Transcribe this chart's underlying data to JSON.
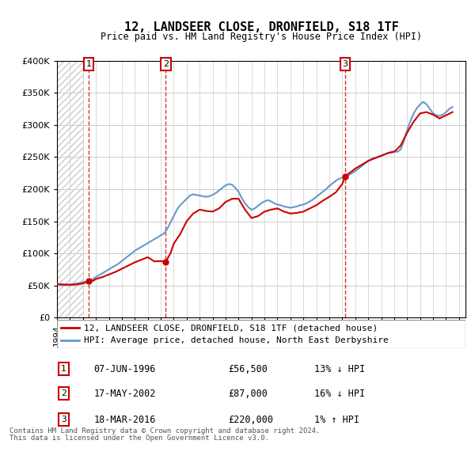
{
  "title": "12, LANDSEER CLOSE, DRONFIELD, S18 1TF",
  "subtitle": "Price paid vs. HM Land Registry's House Price Index (HPI)",
  "ylim": [
    0,
    400000
  ],
  "yticks": [
    0,
    50000,
    100000,
    150000,
    200000,
    250000,
    300000,
    350000,
    400000
  ],
  "ytick_labels": [
    "£0",
    "£50K",
    "£100K",
    "£150K",
    "£200K",
    "£250K",
    "£300K",
    "£350K",
    "£400K"
  ],
  "xlim_start": 1994.0,
  "xlim_end": 2025.5,
  "transactions": [
    {
      "label": "1",
      "date": 1996.44,
      "price": 56500,
      "hpi_price": 64945
    },
    {
      "label": "2",
      "date": 2002.38,
      "price": 87000,
      "hpi_price": 100920
    },
    {
      "label": "3",
      "date": 2016.21,
      "price": 220000,
      "hpi_price": 217800
    }
  ],
  "transaction_display": [
    {
      "num": "1",
      "date_str": "07-JUN-1996",
      "price_str": "£56,500",
      "rel_str": "13% ↓ HPI"
    },
    {
      "num": "2",
      "date_str": "17-MAY-2002",
      "price_str": "£87,000",
      "rel_str": "16% ↓ HPI"
    },
    {
      "num": "3",
      "date_str": "18-MAR-2016",
      "price_str": "£220,000",
      "rel_str": "1% ↑ HPI"
    }
  ],
  "legend_line1": "12, LANDSEER CLOSE, DRONFIELD, S18 1TF (detached house)",
  "legend_line2": "HPI: Average price, detached house, North East Derbyshire",
  "footer_line1": "Contains HM Land Registry data © Crown copyright and database right 2024.",
  "footer_line2": "This data is licensed under the Open Government Licence v3.0.",
  "red_color": "#cc0000",
  "blue_color": "#6699cc",
  "hpi_data_x": [
    1994.0,
    1994.25,
    1994.5,
    1994.75,
    1995.0,
    1995.25,
    1995.5,
    1995.75,
    1996.0,
    1996.25,
    1996.5,
    1996.75,
    1997.0,
    1997.25,
    1997.5,
    1997.75,
    1998.0,
    1998.25,
    1998.5,
    1998.75,
    1999.0,
    1999.25,
    1999.5,
    1999.75,
    2000.0,
    2000.25,
    2000.5,
    2000.75,
    2001.0,
    2001.25,
    2001.5,
    2001.75,
    2002.0,
    2002.25,
    2002.5,
    2002.75,
    2003.0,
    2003.25,
    2003.5,
    2003.75,
    2004.0,
    2004.25,
    2004.5,
    2004.75,
    2005.0,
    2005.25,
    2005.5,
    2005.75,
    2006.0,
    2006.25,
    2006.5,
    2006.75,
    2007.0,
    2007.25,
    2007.5,
    2007.75,
    2008.0,
    2008.25,
    2008.5,
    2008.75,
    2009.0,
    2009.25,
    2009.5,
    2009.75,
    2010.0,
    2010.25,
    2010.5,
    2010.75,
    2011.0,
    2011.25,
    2011.5,
    2011.75,
    2012.0,
    2012.25,
    2012.5,
    2012.75,
    2013.0,
    2013.25,
    2013.5,
    2013.75,
    2014.0,
    2014.25,
    2014.5,
    2014.75,
    2015.0,
    2015.25,
    2015.5,
    2015.75,
    2016.0,
    2016.25,
    2016.5,
    2016.75,
    2017.0,
    2017.25,
    2017.5,
    2017.75,
    2018.0,
    2018.25,
    2018.5,
    2018.75,
    2019.0,
    2019.25,
    2019.5,
    2019.75,
    2020.0,
    2020.25,
    2020.5,
    2020.75,
    2021.0,
    2021.25,
    2021.5,
    2021.75,
    2022.0,
    2022.25,
    2022.5,
    2022.75,
    2023.0,
    2023.25,
    2023.5,
    2023.75,
    2024.0,
    2024.25,
    2024.5
  ],
  "hpi_data_y": [
    52000,
    51000,
    50500,
    51000,
    51500,
    52000,
    53000,
    54000,
    55000,
    56000,
    58000,
    60000,
    63000,
    66000,
    69000,
    72000,
    75000,
    78000,
    81000,
    84000,
    88000,
    92000,
    96000,
    100000,
    104000,
    107000,
    110000,
    113000,
    116000,
    119000,
    122000,
    125000,
    128000,
    131000,
    138000,
    148000,
    158000,
    168000,
    175000,
    180000,
    185000,
    190000,
    192000,
    191000,
    190000,
    189000,
    188000,
    189000,
    191000,
    194000,
    198000,
    202000,
    206000,
    208000,
    207000,
    202000,
    196000,
    186000,
    178000,
    172000,
    168000,
    170000,
    174000,
    178000,
    181000,
    183000,
    181000,
    178000,
    176000,
    175000,
    173000,
    172000,
    171000,
    172000,
    173000,
    175000,
    176000,
    178000,
    181000,
    184000,
    188000,
    192000,
    196000,
    200000,
    205000,
    209000,
    213000,
    216000,
    218000,
    220000,
    222000,
    225000,
    228000,
    232000,
    236000,
    240000,
    244000,
    247000,
    249000,
    250000,
    252000,
    254000,
    256000,
    258000,
    259000,
    258000,
    262000,
    275000,
    292000,
    306000,
    318000,
    326000,
    332000,
    336000,
    332000,
    325000,
    318000,
    315000,
    314000,
    316000,
    320000,
    325000,
    328000
  ],
  "price_data_x": [
    1994.0,
    1994.5,
    1995.0,
    1995.5,
    1996.0,
    1996.44,
    1996.75,
    1997.0,
    1997.5,
    1998.0,
    1998.5,
    1999.0,
    1999.5,
    2000.0,
    2000.5,
    2001.0,
    2001.5,
    2002.0,
    2002.38,
    2002.75,
    2003.0,
    2003.5,
    2004.0,
    2004.5,
    2005.0,
    2005.5,
    2006.0,
    2006.5,
    2007.0,
    2007.5,
    2008.0,
    2008.5,
    2009.0,
    2009.5,
    2010.0,
    2010.5,
    2011.0,
    2011.5,
    2012.0,
    2012.5,
    2013.0,
    2013.5,
    2014.0,
    2014.5,
    2015.0,
    2015.5,
    2016.0,
    2016.21,
    2016.75,
    2017.0,
    2017.5,
    2018.0,
    2018.5,
    2019.0,
    2019.5,
    2020.0,
    2020.5,
    2021.0,
    2021.5,
    2022.0,
    2022.5,
    2023.0,
    2023.5,
    2024.0,
    2024.5
  ],
  "price_data_y": [
    52000,
    51500,
    51000,
    51500,
    53000,
    56500,
    57000,
    60000,
    63000,
    67000,
    71000,
    76000,
    81000,
    86000,
    90000,
    94000,
    87500,
    88000,
    87000,
    100000,
    115000,
    130000,
    150000,
    162000,
    168000,
    166000,
    165000,
    170000,
    180000,
    185000,
    185000,
    168000,
    155000,
    158000,
    165000,
    168000,
    170000,
    165000,
    162000,
    163000,
    165000,
    170000,
    175000,
    182000,
    188000,
    195000,
    208000,
    220000,
    228000,
    232000,
    238000,
    244000,
    248000,
    252000,
    256000,
    258000,
    268000,
    288000,
    305000,
    318000,
    320000,
    316000,
    310000,
    315000,
    320000
  ]
}
